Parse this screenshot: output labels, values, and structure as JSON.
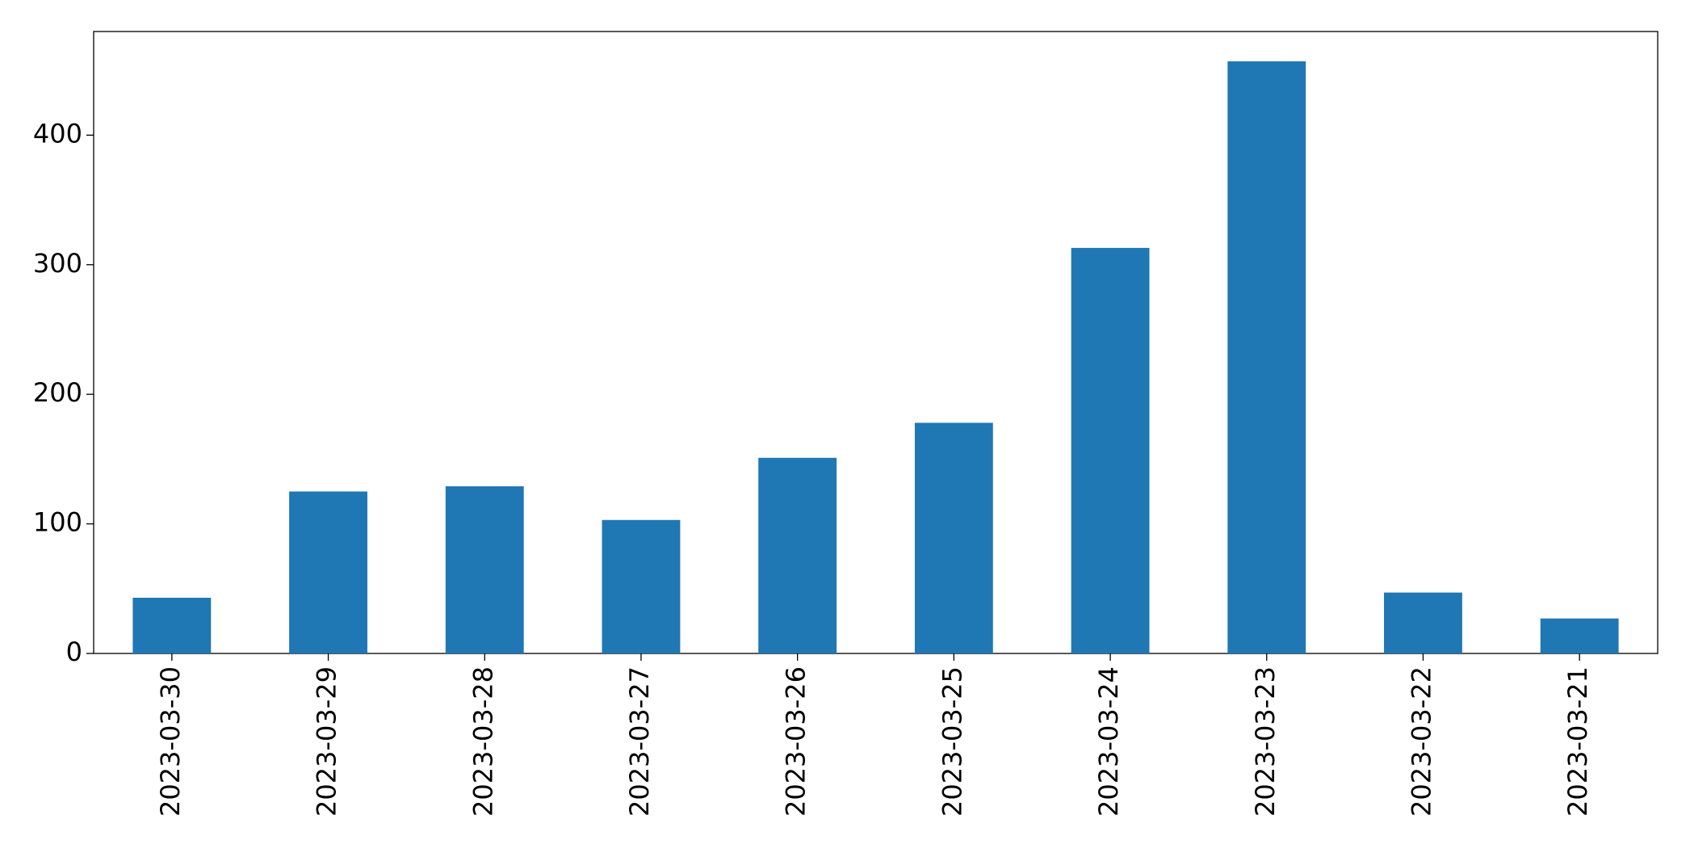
{
  "chart_data": {
    "type": "bar",
    "categories": [
      "2023-03-30",
      "2023-03-29",
      "2023-03-28",
      "2023-03-27",
      "2023-03-26",
      "2023-03-25",
      "2023-03-24",
      "2023-03-23",
      "2023-03-22",
      "2023-03-21"
    ],
    "values": [
      43,
      125,
      129,
      103,
      151,
      178,
      313,
      457,
      47,
      27
    ],
    "color": "#1f77b4",
    "ylim": [
      0,
      480
    ],
    "yticks": [
      0,
      100,
      200,
      300,
      400
    ],
    "grid": false
  }
}
